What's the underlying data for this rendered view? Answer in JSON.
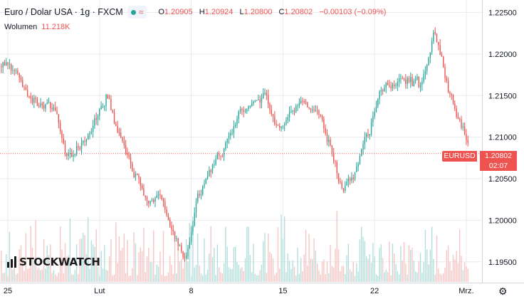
{
  "header": {
    "title": "Euro / Dolar USA · 1g · FXCM",
    "status_symbol": "≈",
    "ohlc": {
      "o_label": "O",
      "o": "1.20905",
      "h_label": "H",
      "h": "1.20924",
      "l_label": "L",
      "l": "1.20800",
      "c_label": "C",
      "c": "1.20802",
      "change": "−0.00103 (−0.09%)"
    },
    "volume_label": "Wolumen",
    "volume_value": "11.218K"
  },
  "price_label": {
    "symbol": "EURUSD",
    "last": "1.20802",
    "countdown": "02:07"
  },
  "logo_text": "STOCKWATCH",
  "colors": {
    "up": "#26a69a",
    "down": "#ef5350",
    "vol_up": "#b2dfdb",
    "vol_down": "#f7c5c3",
    "grid": "#e9ebf0",
    "text": "#131722"
  },
  "chart_data": {
    "type": "candlestick",
    "title": "Euro / Dolar USA",
    "interval": "1g",
    "source": "FXCM",
    "last_price": 1.20802,
    "ylim": [
      1.1925,
      1.2265
    ],
    "y_ticks": [
      1.195,
      1.2,
      1.205,
      1.21,
      1.215,
      1.22,
      1.225
    ],
    "y_tick_labels": [
      "1.19500",
      "1.20000",
      "1.20500",
      "1.21000",
      "1.21500",
      "1.22000",
      "1.22500"
    ],
    "x_ticks": [
      {
        "label": "25",
        "t": 0.0
      },
      {
        "label": "Lut",
        "t": 7.0
      },
      {
        "label": "8",
        "t": 14.0
      },
      {
        "label": "15",
        "t": 21.0
      },
      {
        "label": "22",
        "t": 28.0
      },
      {
        "label": "Mrz.",
        "t": 35.0
      }
    ],
    "t_range": [
      -0.6,
      36.2
    ],
    "grid": true,
    "approx_price_path": [
      [
        -0.5,
        1.2185
      ],
      [
        0.5,
        1.218
      ],
      [
        1.5,
        1.215
      ],
      [
        2.5,
        1.2135
      ],
      [
        3.5,
        1.214
      ],
      [
        4.5,
        1.207
      ],
      [
        5.5,
        1.2095
      ],
      [
        6.5,
        1.212
      ],
      [
        7.5,
        1.215
      ],
      [
        8.5,
        1.21
      ],
      [
        9.5,
        1.206
      ],
      [
        10.5,
        1.2025
      ],
      [
        11.5,
        1.203
      ],
      [
        12.5,
        1.199
      ],
      [
        13.5,
        1.1955
      ],
      [
        14.5,
        1.2035
      ],
      [
        15.5,
        1.206
      ],
      [
        16.5,
        1.209
      ],
      [
        17.5,
        1.2125
      ],
      [
        18.5,
        1.214
      ],
      [
        19.5,
        1.215
      ],
      [
        20.5,
        1.211
      ],
      [
        21.5,
        1.2135
      ],
      [
        22.5,
        1.2145
      ],
      [
        23.5,
        1.2135
      ],
      [
        24.5,
        1.2085
      ],
      [
        25.5,
        1.203
      ],
      [
        26.5,
        1.206
      ],
      [
        27.5,
        1.211
      ],
      [
        28.5,
        1.216
      ],
      [
        29.5,
        1.2165
      ],
      [
        30.5,
        1.217
      ],
      [
        31.5,
        1.216
      ],
      [
        32.5,
        1.223
      ],
      [
        33.5,
        1.216
      ],
      [
        34.5,
        1.211
      ],
      [
        35.5,
        1.208
      ]
    ],
    "volume_ylim": [
      0,
      120
    ]
  }
}
